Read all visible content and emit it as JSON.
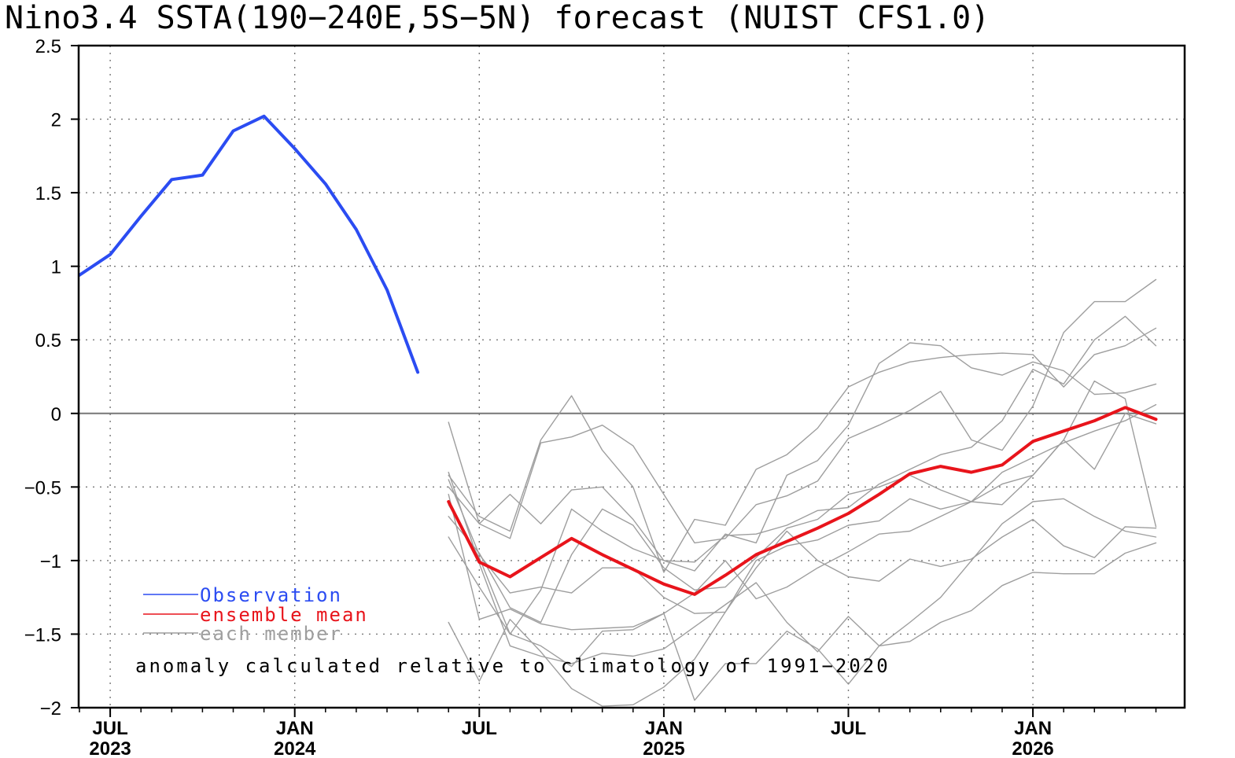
{
  "chart_data": {
    "type": "line",
    "title": "Nino3.4 SSTA(190−240E,5S−5N) forecast (NUIST CFS1.0)",
    "xlabel": "",
    "ylabel": "",
    "ylim": [
      -2,
      2.5
    ],
    "yticks": [
      "2.5",
      "2",
      "1.5",
      "1",
      "0.5",
      "0",
      "−0.5",
      "−1",
      "−1.5",
      "−2"
    ],
    "yticks_values": [
      2.5,
      2,
      1.5,
      1,
      0.5,
      0,
      -0.5,
      -1,
      -1.5,
      -2
    ],
    "xlim": [
      "2023-06",
      "2026-05"
    ],
    "xticks": [
      {
        "month": "2023-07",
        "label": "JUL",
        "year": "2023"
      },
      {
        "month": "2024-01",
        "label": "JAN",
        "year": "2024"
      },
      {
        "month": "2024-07",
        "label": "JUL",
        "year": ""
      },
      {
        "month": "2025-01",
        "label": "JAN",
        "year": "2025"
      },
      {
        "month": "2025-07",
        "label": "JUL",
        "year": ""
      },
      {
        "month": "2026-01",
        "label": "JAN",
        "year": "2026"
      }
    ],
    "grid": true,
    "zero_line": true,
    "legend_placement": "bottom-left",
    "legend": [
      {
        "label": "Observation",
        "color": "#2b4cf2"
      },
      {
        "label": "ensemble mean",
        "color": "#e8141b"
      },
      {
        "label": "each member",
        "color": "#9e9e9e"
      }
    ],
    "annotation": "anomaly calculated relative to climatology of 1991−2020",
    "observation": {
      "color": "#2b4cf2",
      "x": [
        "2023-06",
        "2023-07",
        "2023-08",
        "2023-09",
        "2023-10",
        "2023-11",
        "2023-12",
        "2024-01",
        "2024-02",
        "2024-03",
        "2024-04",
        "2024-05"
      ],
      "values": [
        0.94,
        1.08,
        1.34,
        1.59,
        1.62,
        1.92,
        2.02,
        1.8,
        1.56,
        1.25,
        0.84,
        0.28
      ]
    },
    "ensemble_mean": {
      "color": "#e8141b",
      "x": [
        "2024-06",
        "2024-07",
        "2024-08",
        "2024-09",
        "2024-10",
        "2024-11",
        "2024-12",
        "2025-01",
        "2025-02",
        "2025-03",
        "2025-04",
        "2025-05",
        "2025-06",
        "2025-07",
        "2025-08",
        "2025-09",
        "2025-10",
        "2025-11",
        "2025-12",
        "2026-01",
        "2026-02",
        "2026-03",
        "2026-04",
        "2026-05"
      ],
      "values": [
        -0.6,
        -1.01,
        -1.11,
        -0.98,
        -0.85,
        -0.96,
        -1.06,
        -1.16,
        -1.23,
        -1.1,
        -0.96,
        -0.87,
        -0.78,
        -0.68,
        -0.55,
        -0.41,
        -0.36,
        -0.4,
        -0.35,
        -0.19,
        -0.12,
        -0.05,
        0.04,
        -0.04
      ]
    },
    "members": {
      "color": "#9e9e9e",
      "x": [
        "2024-06",
        "2024-07",
        "2024-08",
        "2024-09",
        "2024-10",
        "2024-11",
        "2024-12",
        "2025-01",
        "2025-02",
        "2025-03",
        "2025-04",
        "2025-05",
        "2025-06",
        "2025-07",
        "2025-08",
        "2025-09",
        "2025-10",
        "2025-11",
        "2025-12",
        "2026-01",
        "2026-02",
        "2026-03",
        "2026-04",
        "2026-05"
      ],
      "series": [
        [
          -0.06,
          -0.75,
          -0.55,
          -0.75,
          -0.52,
          -0.5,
          -0.72,
          -1.0,
          -1.07,
          -0.82,
          -0.88,
          -0.42,
          -0.32,
          -0.08,
          0.34,
          0.48,
          0.46,
          0.31,
          0.26,
          0.35,
          0.29,
          0.13,
          0.14,
          0.2
        ],
        [
          -0.42,
          -0.7,
          -0.8,
          -0.18,
          0.12,
          -0.25,
          -0.5,
          -1.08,
          -0.72,
          -0.76,
          -0.38,
          -0.28,
          -0.1,
          0.18,
          0.28,
          0.35,
          0.38,
          0.4,
          0.41,
          0.4,
          0.18,
          0.4,
          0.46,
          0.58
        ],
        [
          -0.5,
          -0.75,
          -0.85,
          -0.2,
          -0.16,
          -0.08,
          -0.22,
          -0.55,
          -0.88,
          -0.85,
          -0.62,
          -0.56,
          -0.46,
          -0.17,
          -0.08,
          0.02,
          0.15,
          -0.18,
          -0.25,
          0.05,
          0.55,
          0.76,
          0.76,
          0.91
        ],
        [
          -0.84,
          -1.18,
          -1.5,
          -1.2,
          -0.65,
          -0.8,
          -0.92,
          -1.0,
          -1.01,
          -0.83,
          -0.82,
          -0.76,
          -0.66,
          -0.64,
          -0.48,
          -0.38,
          -0.28,
          -0.23,
          -0.05,
          0.3,
          0.2,
          0.5,
          0.66,
          0.46
        ],
        [
          -0.7,
          -0.95,
          -1.32,
          -1.42,
          -0.96,
          -0.65,
          -0.76,
          -1.05,
          -1.2,
          -1.18,
          -0.98,
          -0.78,
          -0.72,
          -0.55,
          -0.5,
          -0.42,
          -0.52,
          -0.6,
          -0.4,
          -0.3,
          -0.2,
          -0.12,
          -0.05,
          0.06
        ],
        [
          -0.45,
          -0.96,
          -1.22,
          -1.18,
          -1.22,
          -1.05,
          -1.05,
          -1.25,
          -1.36,
          -1.35,
          -1.0,
          -0.9,
          -0.86,
          -0.76,
          -0.73,
          -0.58,
          -0.65,
          -0.6,
          -0.48,
          -0.42,
          -0.18,
          0.22,
          0.1,
          -0.77
        ],
        [
          -1.42,
          -1.82,
          -1.4,
          -1.62,
          -1.87,
          -1.99,
          -1.98,
          -1.86,
          -1.67,
          -1.35,
          -1.05,
          -0.8,
          -1.0,
          -1.11,
          -1.14,
          -0.99,
          -1.04,
          -0.99,
          -0.84,
          -0.72,
          -0.9,
          -0.98,
          -0.77,
          -0.78
        ],
        [
          -0.55,
          -1.4,
          -1.33,
          -1.43,
          -1.47,
          -1.46,
          -1.45,
          -1.36,
          -1.22,
          -1.0,
          -1.26,
          -1.18,
          -1.05,
          -0.94,
          -0.82,
          -0.8,
          -0.7,
          -0.6,
          -0.62,
          -0.42,
          -0.18,
          -0.38,
          0.0,
          -0.07
        ],
        [
          -0.62,
          -0.98,
          -1.5,
          -1.58,
          -1.72,
          -1.48,
          -1.47,
          -1.36,
          -1.95,
          -1.7,
          -1.7,
          -1.48,
          -1.6,
          -1.84,
          -1.58,
          -1.55,
          -1.42,
          -1.34,
          -1.17,
          -1.08,
          -1.09,
          -1.09,
          -0.95,
          -0.88
        ],
        [
          -0.4,
          -1.02,
          -1.58,
          -1.65,
          -1.7,
          -1.63,
          -1.65,
          -1.6,
          -1.45,
          -1.3,
          -1.15,
          -1.42,
          -1.62,
          -1.38,
          -1.58,
          -1.42,
          -1.25,
          -1.0,
          -0.75,
          -0.6,
          -0.58,
          -0.7,
          -0.8,
          -0.84
        ]
      ]
    }
  }
}
